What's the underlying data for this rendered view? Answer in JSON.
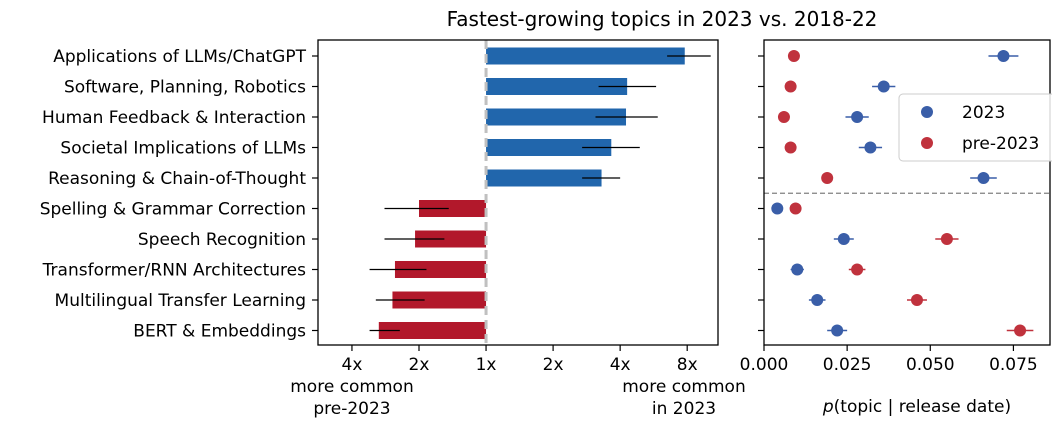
{
  "title": "Fastest-growing topics in 2023 vs. 2018-22",
  "chart_data": [
    {
      "type": "bar",
      "orientation": "horizontal",
      "scale": "log2",
      "categories": [
        "Applications of LLMs/ChatGPT",
        "Software, Planning, Robotics",
        "Human Feedback & Interaction",
        "Societal Implications of LLMs",
        "Reasoning & Chain-of-Thought",
        "Spelling & Grammar Correction",
        "Speech Recognition",
        "Transformer/RNN Architectures",
        "Multilingual Transfer Learning",
        "BERT & Embeddings"
      ],
      "values": [
        7.8,
        4.3,
        4.25,
        3.65,
        3.3,
        0.5,
        0.48,
        0.39,
        0.38,
        0.33
      ],
      "error_low": [
        6.5,
        3.2,
        3.1,
        2.7,
        2.7,
        0.35,
        0.35,
        0.3,
        0.32,
        0.3
      ],
      "error_high": [
        10.2,
        5.8,
        5.9,
        4.9,
        4.0,
        0.68,
        0.65,
        0.54,
        0.53,
        0.41
      ],
      "positive_color": "#2166ac",
      "negative_color": "#b2182b",
      "reference_line_color": "#c0c0c0",
      "xticks": [
        "4x",
        "2x",
        "1x",
        "2x",
        "4x",
        "8x"
      ],
      "xtick_values": [
        0.25,
        0.5,
        1,
        2,
        4,
        8
      ],
      "xlim": [
        0.176,
        11.0
      ],
      "left_annotation": [
        "more common",
        "pre-2023"
      ],
      "right_annotation": [
        "more common",
        "in 2023"
      ]
    },
    {
      "type": "scatter",
      "xlabel_prefix": "p",
      "xlabel_rest": "(topic | release date)",
      "xlim": [
        0,
        0.086
      ],
      "xticks": [
        "0.000",
        "0.025",
        "0.050",
        "0.075"
      ],
      "xtick_values": [
        0,
        0.025,
        0.05,
        0.075
      ],
      "legend_position": "upper-right",
      "divider_after_index": 4,
      "divider_color": "#808080",
      "series": [
        {
          "name": "2023",
          "color": "#3a5ea8",
          "values": [
            0.072,
            0.036,
            0.028,
            0.032,
            0.066,
            0.004,
            0.024,
            0.01,
            0.016,
            0.022
          ],
          "err": [
            0.0045,
            0.0035,
            0.0035,
            0.0035,
            0.004,
            0.0015,
            0.003,
            0.002,
            0.0025,
            0.003
          ]
        },
        {
          "name": "pre-2023",
          "color": "#c0323d",
          "values": [
            0.009,
            0.008,
            0.006,
            0.008,
            0.019,
            0.0095,
            0.055,
            0.028,
            0.046,
            0.077
          ],
          "err": [
            0.001,
            0.001,
            0.001,
            0.001,
            0.0015,
            0.001,
            0.0035,
            0.0025,
            0.003,
            0.004
          ]
        }
      ]
    }
  ]
}
